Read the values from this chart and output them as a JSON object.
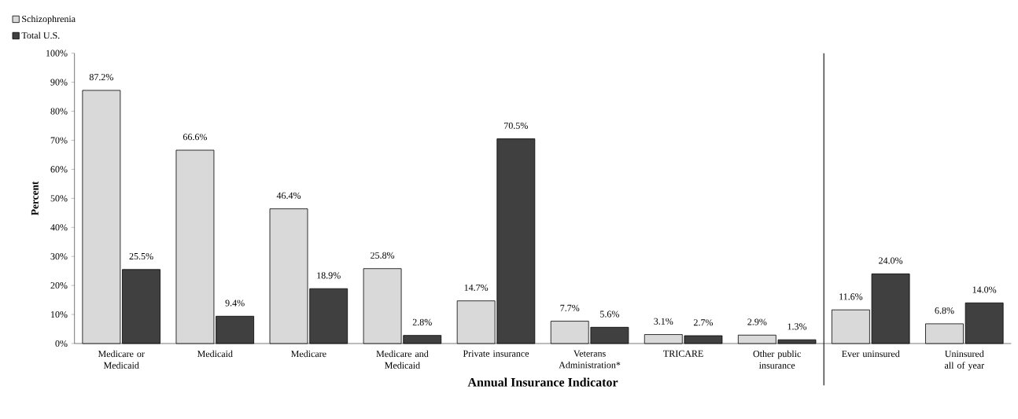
{
  "chart_data": {
    "type": "bar",
    "xlabel": "Annual Insurance Indicator",
    "ylabel": "Percent",
    "categories": [
      "Medicare or Medicaid",
      "Medicaid",
      "Medicare",
      "Medicare and Medicaid",
      "Private insurance",
      "Veterans Administration*",
      "TRICARE",
      "Other public insurance",
      "Ever uninsured",
      "Uninsured all of year"
    ],
    "series": [
      {
        "name": "Schizophrenia",
        "color": "#d9d9d9",
        "values": [
          87.2,
          66.6,
          46.4,
          25.8,
          14.7,
          7.7,
          3.1,
          2.9,
          11.6,
          6.8
        ],
        "value_labels": [
          "87.2%",
          "66.6%",
          "46.4%",
          "25.8%",
          "14.7%",
          "7.7%",
          "3.1%",
          "2.9%",
          "11.6%",
          "6.8%"
        ]
      },
      {
        "name": "Total U.S.",
        "color": "#404040",
        "values": [
          25.5,
          9.4,
          18.9,
          2.8,
          70.5,
          5.6,
          2.7,
          1.3,
          24.0,
          14.0
        ],
        "value_labels": [
          "25.5%",
          "9.4%",
          "18.9%",
          "2.8%",
          "70.5%",
          "5.6%",
          "2.7%",
          "1.3%",
          "24.0%",
          "14.0%"
        ]
      }
    ],
    "ylim": [
      0,
      100
    ],
    "yticks": [
      {
        "value": 0,
        "label": "0%"
      },
      {
        "value": 10,
        "label": "10%"
      },
      {
        "value": 20,
        "label": "20%"
      },
      {
        "value": 30,
        "label": "30%"
      },
      {
        "value": 40,
        "label": "40%"
      },
      {
        "value": 50,
        "label": "50%"
      },
      {
        "value": 60,
        "label": "60%"
      },
      {
        "value": 70,
        "label": "70%"
      },
      {
        "value": 80,
        "label": "80%"
      },
      {
        "value": 90,
        "label": "90%"
      },
      {
        "value": 100,
        "label": "100%"
      }
    ],
    "legend": "top left",
    "grid": false
  }
}
